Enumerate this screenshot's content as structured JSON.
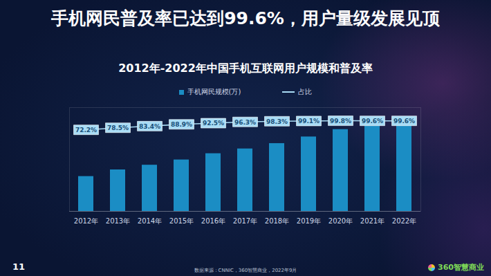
{
  "page": {
    "headline": "手机网民普及率已达到99.6%，用户量级发展见顶",
    "page_number": "11",
    "source": "数据来源：CNNIC，360智慧商业，2022年9月",
    "logo": "360智慧商业"
  },
  "chart_data": {
    "type": "bar",
    "title": "2012年-2022年中国手机互联网用户规模和普及率",
    "categories": [
      "2012年",
      "2013年",
      "2014年",
      "2015年",
      "2016年",
      "2017年",
      "2018年",
      "2019年",
      "2020年",
      "2021年",
      "2022年"
    ],
    "series": [
      {
        "name": "手机网民规模(万)",
        "type": "bar",
        "color": "#1b8dc4",
        "values": [
          42000,
          50006,
          55678,
          61981,
          69531,
          75265,
          81698,
          89690,
          98576,
          102874,
          104700
        ]
      },
      {
        "name": "占比",
        "type": "line",
        "axis": "y2",
        "color": "#a9dcf5",
        "marker": "square",
        "data_labels": true,
        "values": [
          72.2,
          78.5,
          83.4,
          88.9,
          92.5,
          96.3,
          98.3,
          99.1,
          99.8,
          99.6,
          99.6
        ],
        "value_labels": [
          "72.2%",
          "78.5%",
          "83.4%",
          "88.9%",
          "92.5%",
          "96.3%",
          "98.3%",
          "99.1%",
          "99.8%",
          "99.6%",
          "99.6%"
        ]
      }
    ],
    "ylim": [
      0,
      125000
    ],
    "y2lim": [
      -176,
      140
    ],
    "grid": false,
    "legend": "top",
    "tick_labels": "x"
  }
}
